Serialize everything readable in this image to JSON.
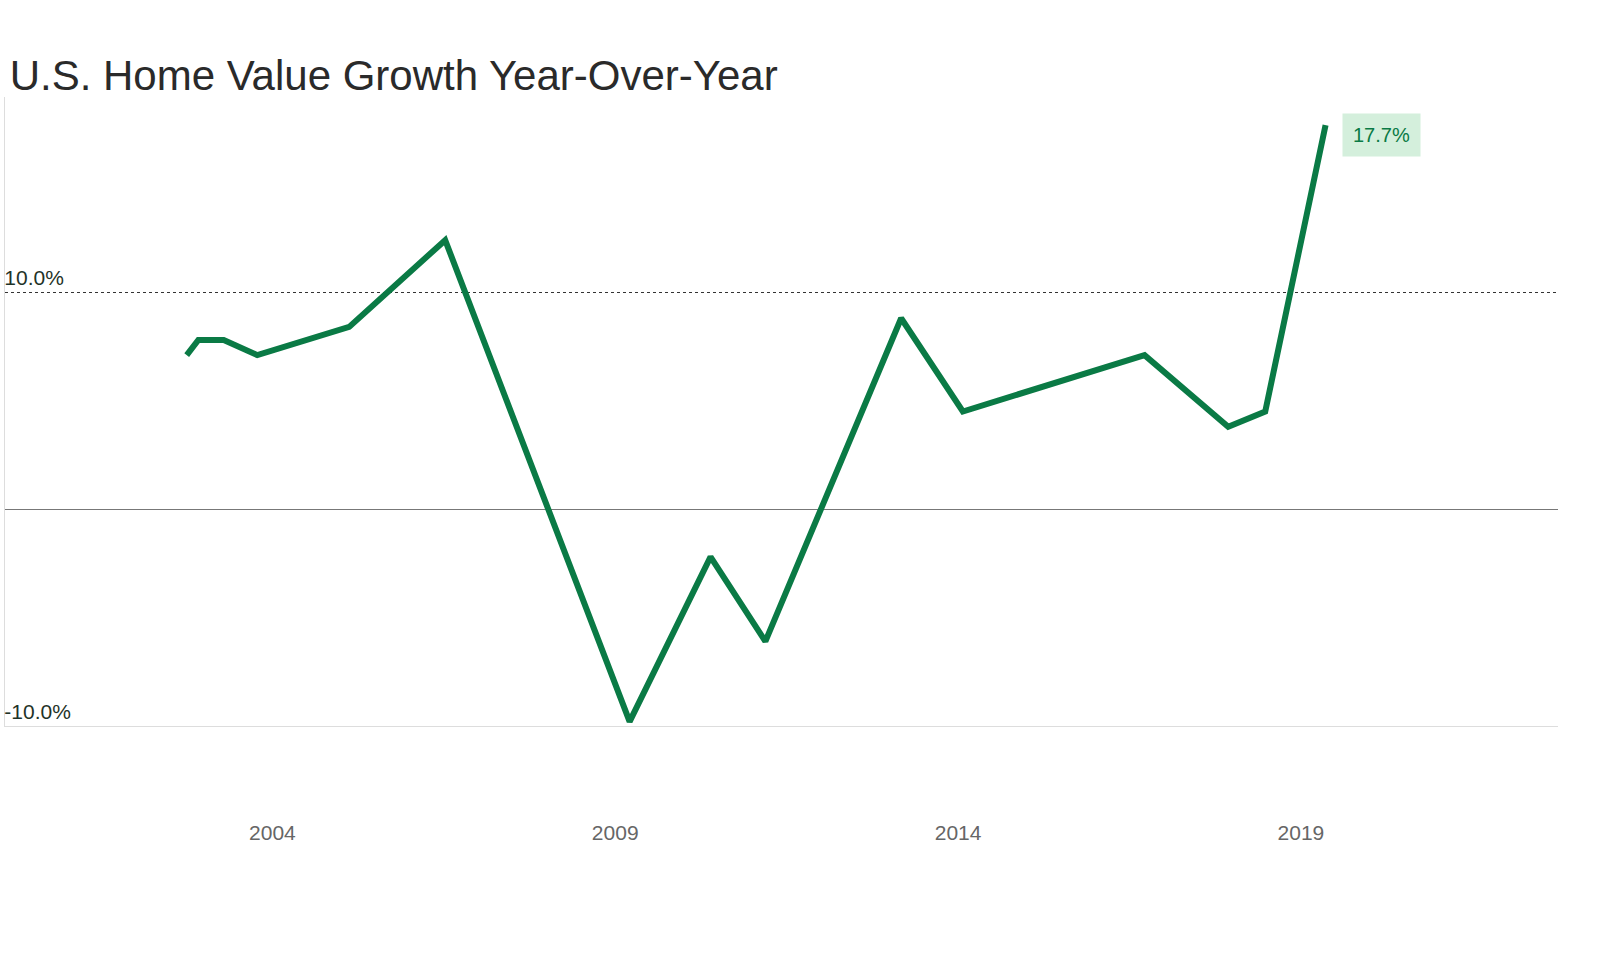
{
  "chart_data": {
    "type": "line",
    "title": "U.S. Home Value Growth Year-Over-Year",
    "x": [
      2002.75,
      2002.92,
      2003.29,
      2003.78,
      2005.12,
      2006.52,
      2009.21,
      2010.39,
      2011.19,
      2013.17,
      2014.07,
      2016.72,
      2017.94,
      2018.48,
      2019.36
    ],
    "values": [
      7.1,
      7.8,
      7.8,
      7.1,
      8.4,
      12.4,
      -9.8,
      -2.2,
      -6.1,
      8.8,
      4.5,
      7.1,
      3.8,
      4.5,
      17.7
    ],
    "color": "#0a7a45",
    "xlim": [
      2000.1,
      2022.75
    ],
    "ylim": [
      -10,
      19
    ],
    "xticks": [
      2004,
      2009,
      2014,
      2019
    ],
    "yticks": [
      {
        "value": -10,
        "label": "-10.0%"
      },
      {
        "value": 10,
        "label": "10.0%"
      }
    ],
    "grid": true,
    "annotations": [
      {
        "text": "17.7%",
        "x": 2019.36,
        "y": 17.7
      }
    ]
  }
}
